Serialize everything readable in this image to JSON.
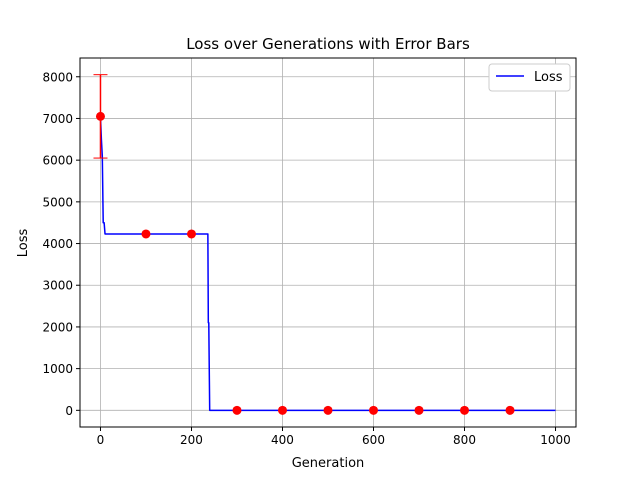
{
  "chart_data": {
    "type": "line",
    "title": "Loss over Generations with Error Bars",
    "xlabel": "Generation",
    "ylabel": "Loss",
    "xlim": [
      -45,
      1045
    ],
    "ylim": [
      -400,
      8450
    ],
    "xticks": [
      0,
      200,
      400,
      600,
      800,
      1000
    ],
    "yticks": [
      0,
      1000,
      2000,
      3000,
      4000,
      5000,
      6000,
      7000,
      8000
    ],
    "grid": true,
    "legend": {
      "location": "upper right",
      "entries": [
        {
          "label": "Loss",
          "color": "#0000ff"
        }
      ]
    },
    "series": [
      {
        "name": "Loss",
        "color": "#0000ff",
        "x": [
          0,
          2,
          4,
          6,
          8,
          10,
          236,
          237,
          238,
          240,
          242,
          1000
        ],
        "y": [
          7050,
          6500,
          6100,
          4500,
          4500,
          4230,
          4230,
          2100,
          2100,
          0,
          0,
          0
        ]
      }
    ],
    "error_bars": {
      "color": "#ff0000",
      "marker_color": "#ff0000",
      "x": [
        0,
        100,
        200,
        300,
        400,
        500,
        600,
        700,
        800,
        900
      ],
      "y": [
        7050,
        4230,
        4230,
        0,
        0,
        0,
        0,
        0,
        0,
        0
      ],
      "err": [
        1000,
        0,
        0,
        0,
        0,
        0,
        0,
        0,
        0,
        0
      ]
    }
  }
}
